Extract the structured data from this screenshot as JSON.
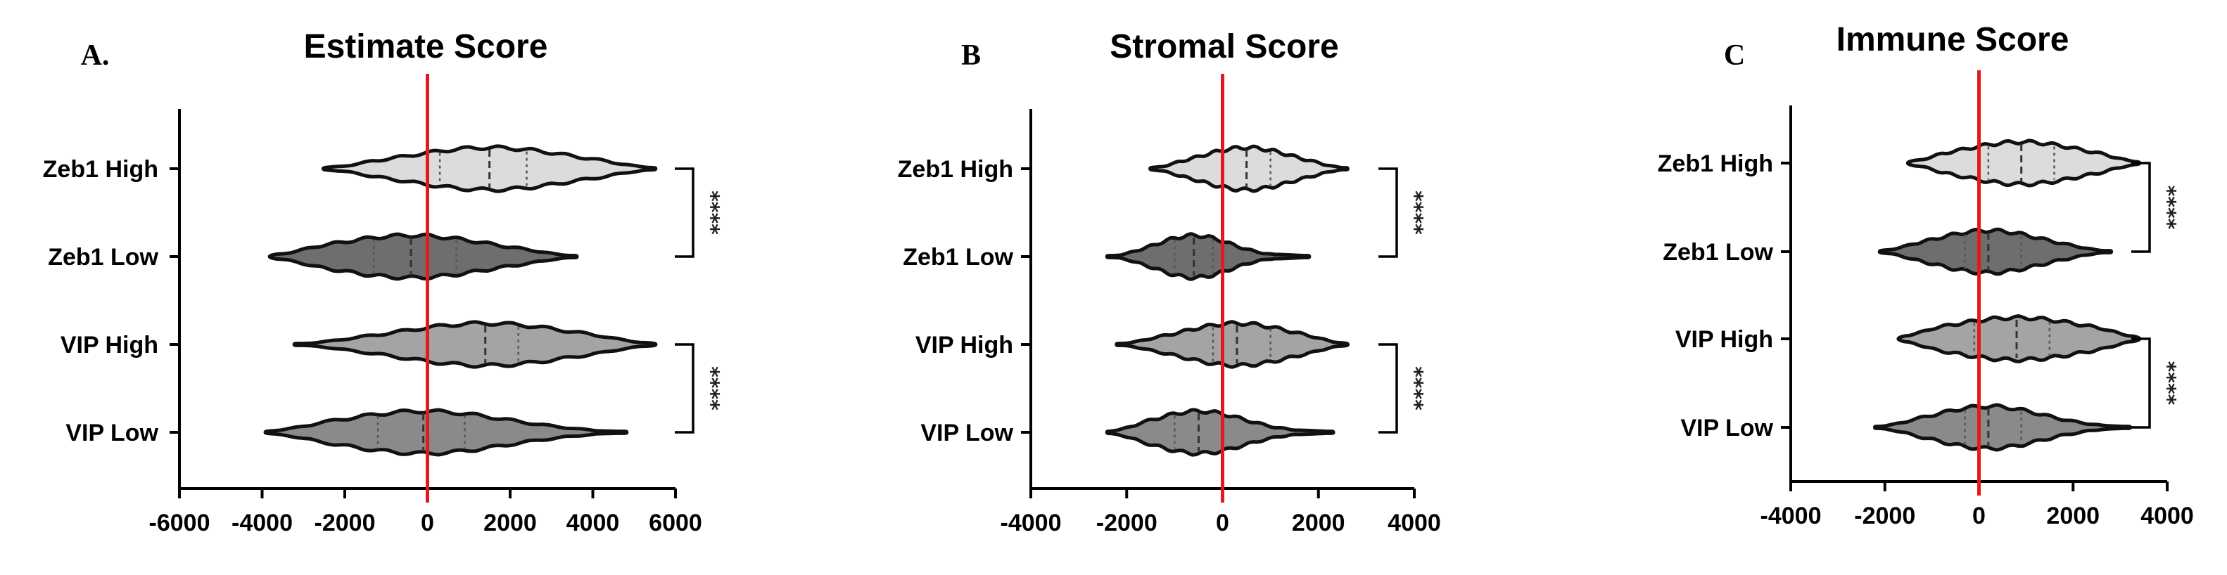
{
  "chart_data": [
    {
      "type": "violin",
      "panel_label": "A.",
      "title": "Estimate Score",
      "categories": [
        "Zeb1 High",
        "Zeb1 Low",
        "VIP High",
        "VIP Low"
      ],
      "xlim": [
        -6000,
        6000
      ],
      "xticks": [
        -6000,
        -4000,
        -2000,
        0,
        2000,
        4000,
        6000
      ],
      "xtick_labels": [
        "-6000",
        "-4000",
        "-2000",
        "0",
        "2000",
        "4000",
        "6000"
      ],
      "reference_line_x": 0,
      "violins": [
        {
          "name": "Zeb1 High",
          "fill": "#dcdcdc",
          "min": -2500,
          "max": 5500,
          "q1": 300,
          "median": 1500,
          "q3": 2400
        },
        {
          "name": "Zeb1 Low",
          "fill": "#6e6e6e",
          "min": -3800,
          "max": 3600,
          "q1": -1300,
          "median": -400,
          "q3": 700
        },
        {
          "name": "VIP High",
          "fill": "#a4a4a4",
          "min": -3200,
          "max": 5500,
          "q1": 0,
          "median": 1400,
          "q3": 2200
        },
        {
          "name": "VIP Low",
          "fill": "#8a8a8a",
          "min": -3900,
          "max": 4800,
          "q1": -1200,
          "median": -100,
          "q3": 900
        }
      ],
      "significance": [
        {
          "between": [
            "Zeb1 High",
            "Zeb1 Low"
          ],
          "label": "****"
        },
        {
          "between": [
            "VIP High",
            "VIP Low"
          ],
          "label": "****"
        }
      ]
    },
    {
      "type": "violin",
      "panel_label": "B",
      "title": "Stromal Score",
      "categories": [
        "Zeb1 High",
        "Zeb1 Low",
        "VIP High",
        "VIP Low"
      ],
      "xlim": [
        -4000,
        4000
      ],
      "xticks": [
        -4000,
        -2000,
        0,
        2000,
        4000
      ],
      "xtick_labels": [
        "-4000",
        "-2000",
        "0",
        "2000",
        "4000"
      ],
      "reference_line_x": 0,
      "violins": [
        {
          "name": "Zeb1 High",
          "fill": "#dcdcdc",
          "min": -1500,
          "max": 2600,
          "q1": 0,
          "median": 500,
          "q3": 1000
        },
        {
          "name": "Zeb1 Low",
          "fill": "#6e6e6e",
          "min": -2400,
          "max": 1800,
          "q1": -1000,
          "median": -600,
          "q3": -200
        },
        {
          "name": "VIP High",
          "fill": "#a4a4a4",
          "min": -2200,
          "max": 2600,
          "q1": -200,
          "median": 300,
          "q3": 1000
        },
        {
          "name": "VIP Low",
          "fill": "#8a8a8a",
          "min": -2400,
          "max": 2300,
          "q1": -1000,
          "median": -500,
          "q3": 0
        }
      ],
      "significance": [
        {
          "between": [
            "Zeb1 High",
            "Zeb1 Low"
          ],
          "label": "****"
        },
        {
          "between": [
            "VIP High",
            "VIP Low"
          ],
          "label": "****"
        }
      ]
    },
    {
      "type": "violin",
      "panel_label": "C",
      "title": "Immune Score",
      "categories": [
        "Zeb1 High",
        "Zeb1 Low",
        "VIP High",
        "VIP Low"
      ],
      "xlim": [
        -4000,
        4000
      ],
      "xticks": [
        -4000,
        -2000,
        0,
        2000,
        4000
      ],
      "xtick_labels": [
        "-4000",
        "-2000",
        "0",
        "2000",
        "4000"
      ],
      "reference_line_x": 0,
      "violins": [
        {
          "name": "Zeb1 High",
          "fill": "#dcdcdc",
          "min": -1500,
          "max": 3400,
          "q1": 200,
          "median": 900,
          "q3": 1600
        },
        {
          "name": "Zeb1 Low",
          "fill": "#6e6e6e",
          "min": -2100,
          "max": 2800,
          "q1": -300,
          "median": 200,
          "q3": 900
        },
        {
          "name": "VIP High",
          "fill": "#a4a4a4",
          "min": -1700,
          "max": 3400,
          "q1": -100,
          "median": 800,
          "q3": 1500
        },
        {
          "name": "VIP Low",
          "fill": "#8a8a8a",
          "min": -2200,
          "max": 3200,
          "q1": -300,
          "median": 200,
          "q3": 900
        }
      ],
      "significance": [
        {
          "between": [
            "Zeb1 High",
            "Zeb1 Low"
          ],
          "label": "****"
        },
        {
          "between": [
            "VIP High",
            "VIP Low"
          ],
          "label": "****"
        }
      ]
    }
  ],
  "colors": {
    "reference_line": "#e31a1c",
    "axis": "#000000"
  }
}
